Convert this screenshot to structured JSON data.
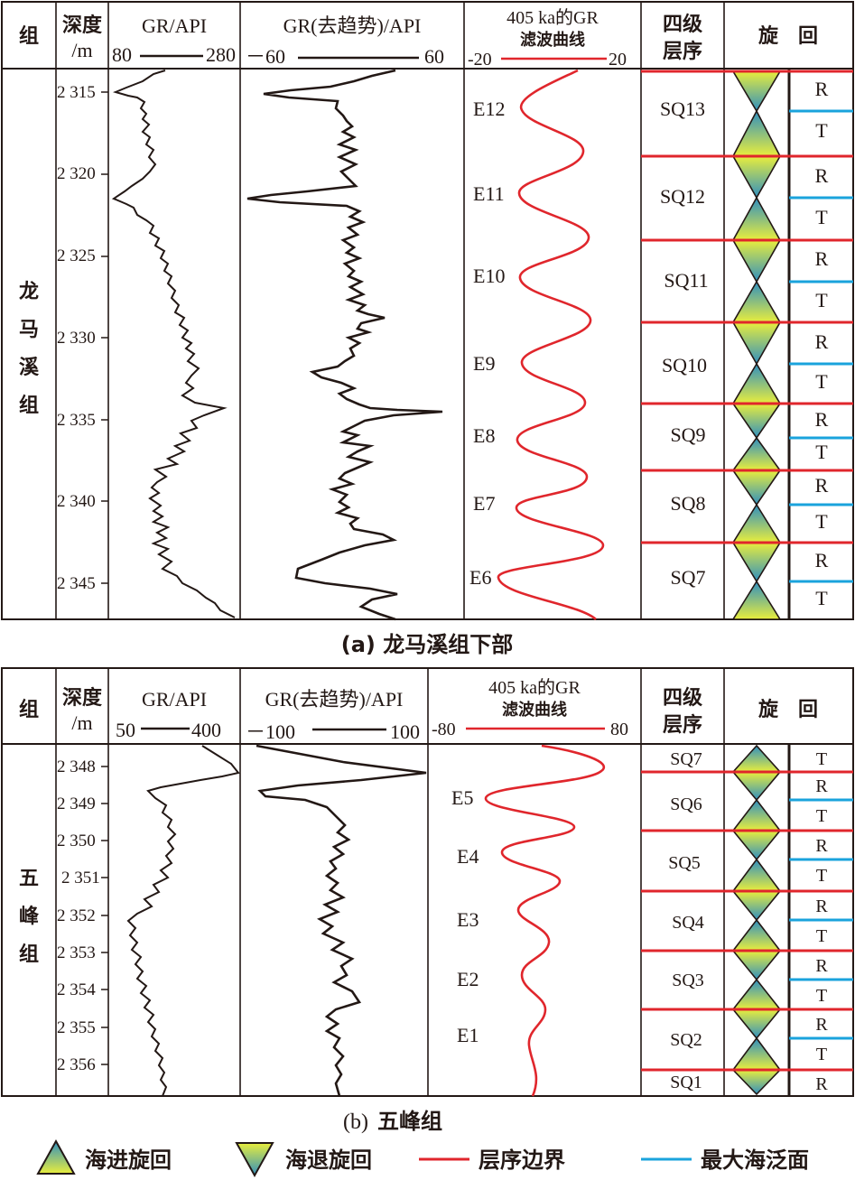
{
  "panel_a": {
    "headers": {
      "group": "组",
      "depth": "深度",
      "depth_unit": "/m",
      "gr": "GR/API",
      "gr_min": "80",
      "gr_max": "280",
      "detrend": "GR(去趋势)/API",
      "detrend_min": "－60",
      "detrend_max": "60",
      "filter_line1": "405 ka的GR",
      "filter_line2": "滤波曲线",
      "filter_min": "-20",
      "filter_max": "20",
      "seq_line1": "四级",
      "seq_line2": "层序",
      "cycle": "旋　回"
    },
    "formation": [
      "龙",
      "马",
      "溪",
      "组"
    ],
    "depth_ticks": [
      "2 315",
      "2 320",
      "2 325",
      "2 330",
      "2 335",
      "2 340",
      "2 345"
    ],
    "eccentricity": [
      "E12",
      "E11",
      "E10",
      "E9",
      "E8",
      "E7",
      "E6"
    ],
    "sequences": [
      "SQ13",
      "SQ12",
      "SQ11",
      "SQ10",
      "SQ9",
      "SQ8",
      "SQ7"
    ],
    "rt": [
      "R",
      "T",
      "R",
      "T",
      "R",
      "T",
      "R",
      "T",
      "R",
      "T",
      "R",
      "T",
      "R",
      "T"
    ],
    "caption": "(a) 龙马溪组下部"
  },
  "panel_b": {
    "headers": {
      "group": "组",
      "depth": "深度",
      "depth_unit": "/m",
      "gr": "GR/API",
      "gr_min": "50",
      "gr_max": "400",
      "detrend": "GR(去趋势)/API",
      "detrend_min": "－100",
      "detrend_max": "100",
      "filter_line1": "405 ka的GR",
      "filter_line2": "滤波曲线",
      "filter_min": "-80",
      "filter_max": "80",
      "seq_line1": "四级",
      "seq_line2": "层序",
      "cycle": "旋　回"
    },
    "formation": [
      "五",
      "峰",
      "组"
    ],
    "depth_ticks": [
      "2 348",
      "2 349",
      "2 350",
      "2 351",
      "2 352",
      "2 353",
      "2 354",
      "2 355",
      "2 356"
    ],
    "eccentricity": [
      "E5",
      "E4",
      "E3",
      "E2",
      "E1"
    ],
    "sequences": [
      "SQ7",
      "SQ6",
      "SQ5",
      "SQ4",
      "SQ3",
      "SQ2",
      "SQ1"
    ],
    "rt": [
      "T",
      "R",
      "T",
      "R",
      "T",
      "R",
      "T",
      "R",
      "T",
      "R",
      "T",
      "R"
    ],
    "rt_last": "R",
    "caption_label": "(b)",
    "caption": "五峰组"
  },
  "legend": {
    "transgressive": "海进旋回",
    "regressive": "海退旋回",
    "boundary": "层序边界",
    "mfs": "最大海泛面"
  },
  "colors": {
    "boundary": "#e0262c",
    "mfs": "#1aa3dc",
    "curve": "#231815",
    "cycle_top": "#2f8fc0",
    "cycle_bottom": "#e9ee3c"
  }
}
